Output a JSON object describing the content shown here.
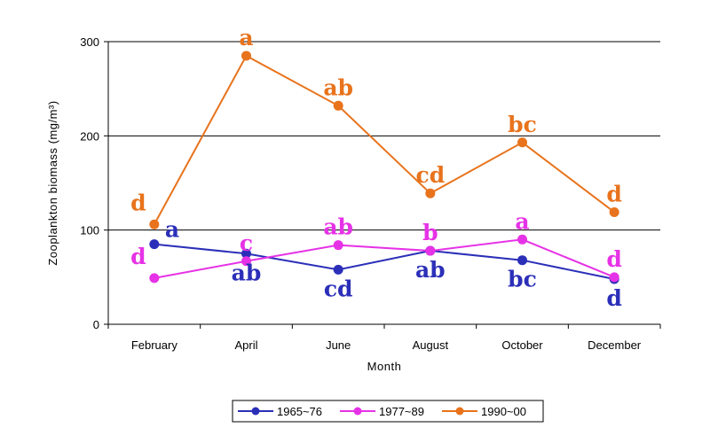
{
  "chart_data": {
    "type": "line",
    "title": "",
    "xlabel": "Month",
    "ylabel": "Zooplankton biomass (mg/m³)",
    "categories": [
      "February",
      "April",
      "June",
      "August",
      "October",
      "December"
    ],
    "ylim": [
      0,
      300
    ],
    "yticks": [
      "0",
      "100",
      "200",
      "300"
    ],
    "grid": "horizontal",
    "legend_position": "bottom",
    "series": [
      {
        "name": "1965~76",
        "color": "#2b2fb8",
        "values": [
          85,
          75,
          58,
          78,
          68,
          48
        ],
        "labels": [
          "a",
          "ab",
          "cd",
          "ab",
          "bc",
          "d"
        ],
        "label_pos": [
          "right",
          "below",
          "below",
          "below",
          "below",
          "below"
        ]
      },
      {
        "name": "1977~89",
        "color": "#e632e6",
        "values": [
          49,
          67,
          84,
          78,
          90,
          50
        ],
        "labels": [
          "d",
          "c",
          "ab",
          "b",
          "a",
          "d"
        ],
        "label_pos": [
          "left-above",
          "above",
          "above",
          "above",
          "above",
          "above"
        ]
      },
      {
        "name": "1990~00",
        "color": "#e8731c",
        "values": [
          106,
          285,
          232,
          139,
          193,
          119
        ],
        "labels": [
          "d",
          "a",
          "ab",
          "cd",
          "bc",
          "d"
        ],
        "label_pos": [
          "left-above",
          "above",
          "above",
          "above",
          "above",
          "above"
        ]
      }
    ]
  }
}
